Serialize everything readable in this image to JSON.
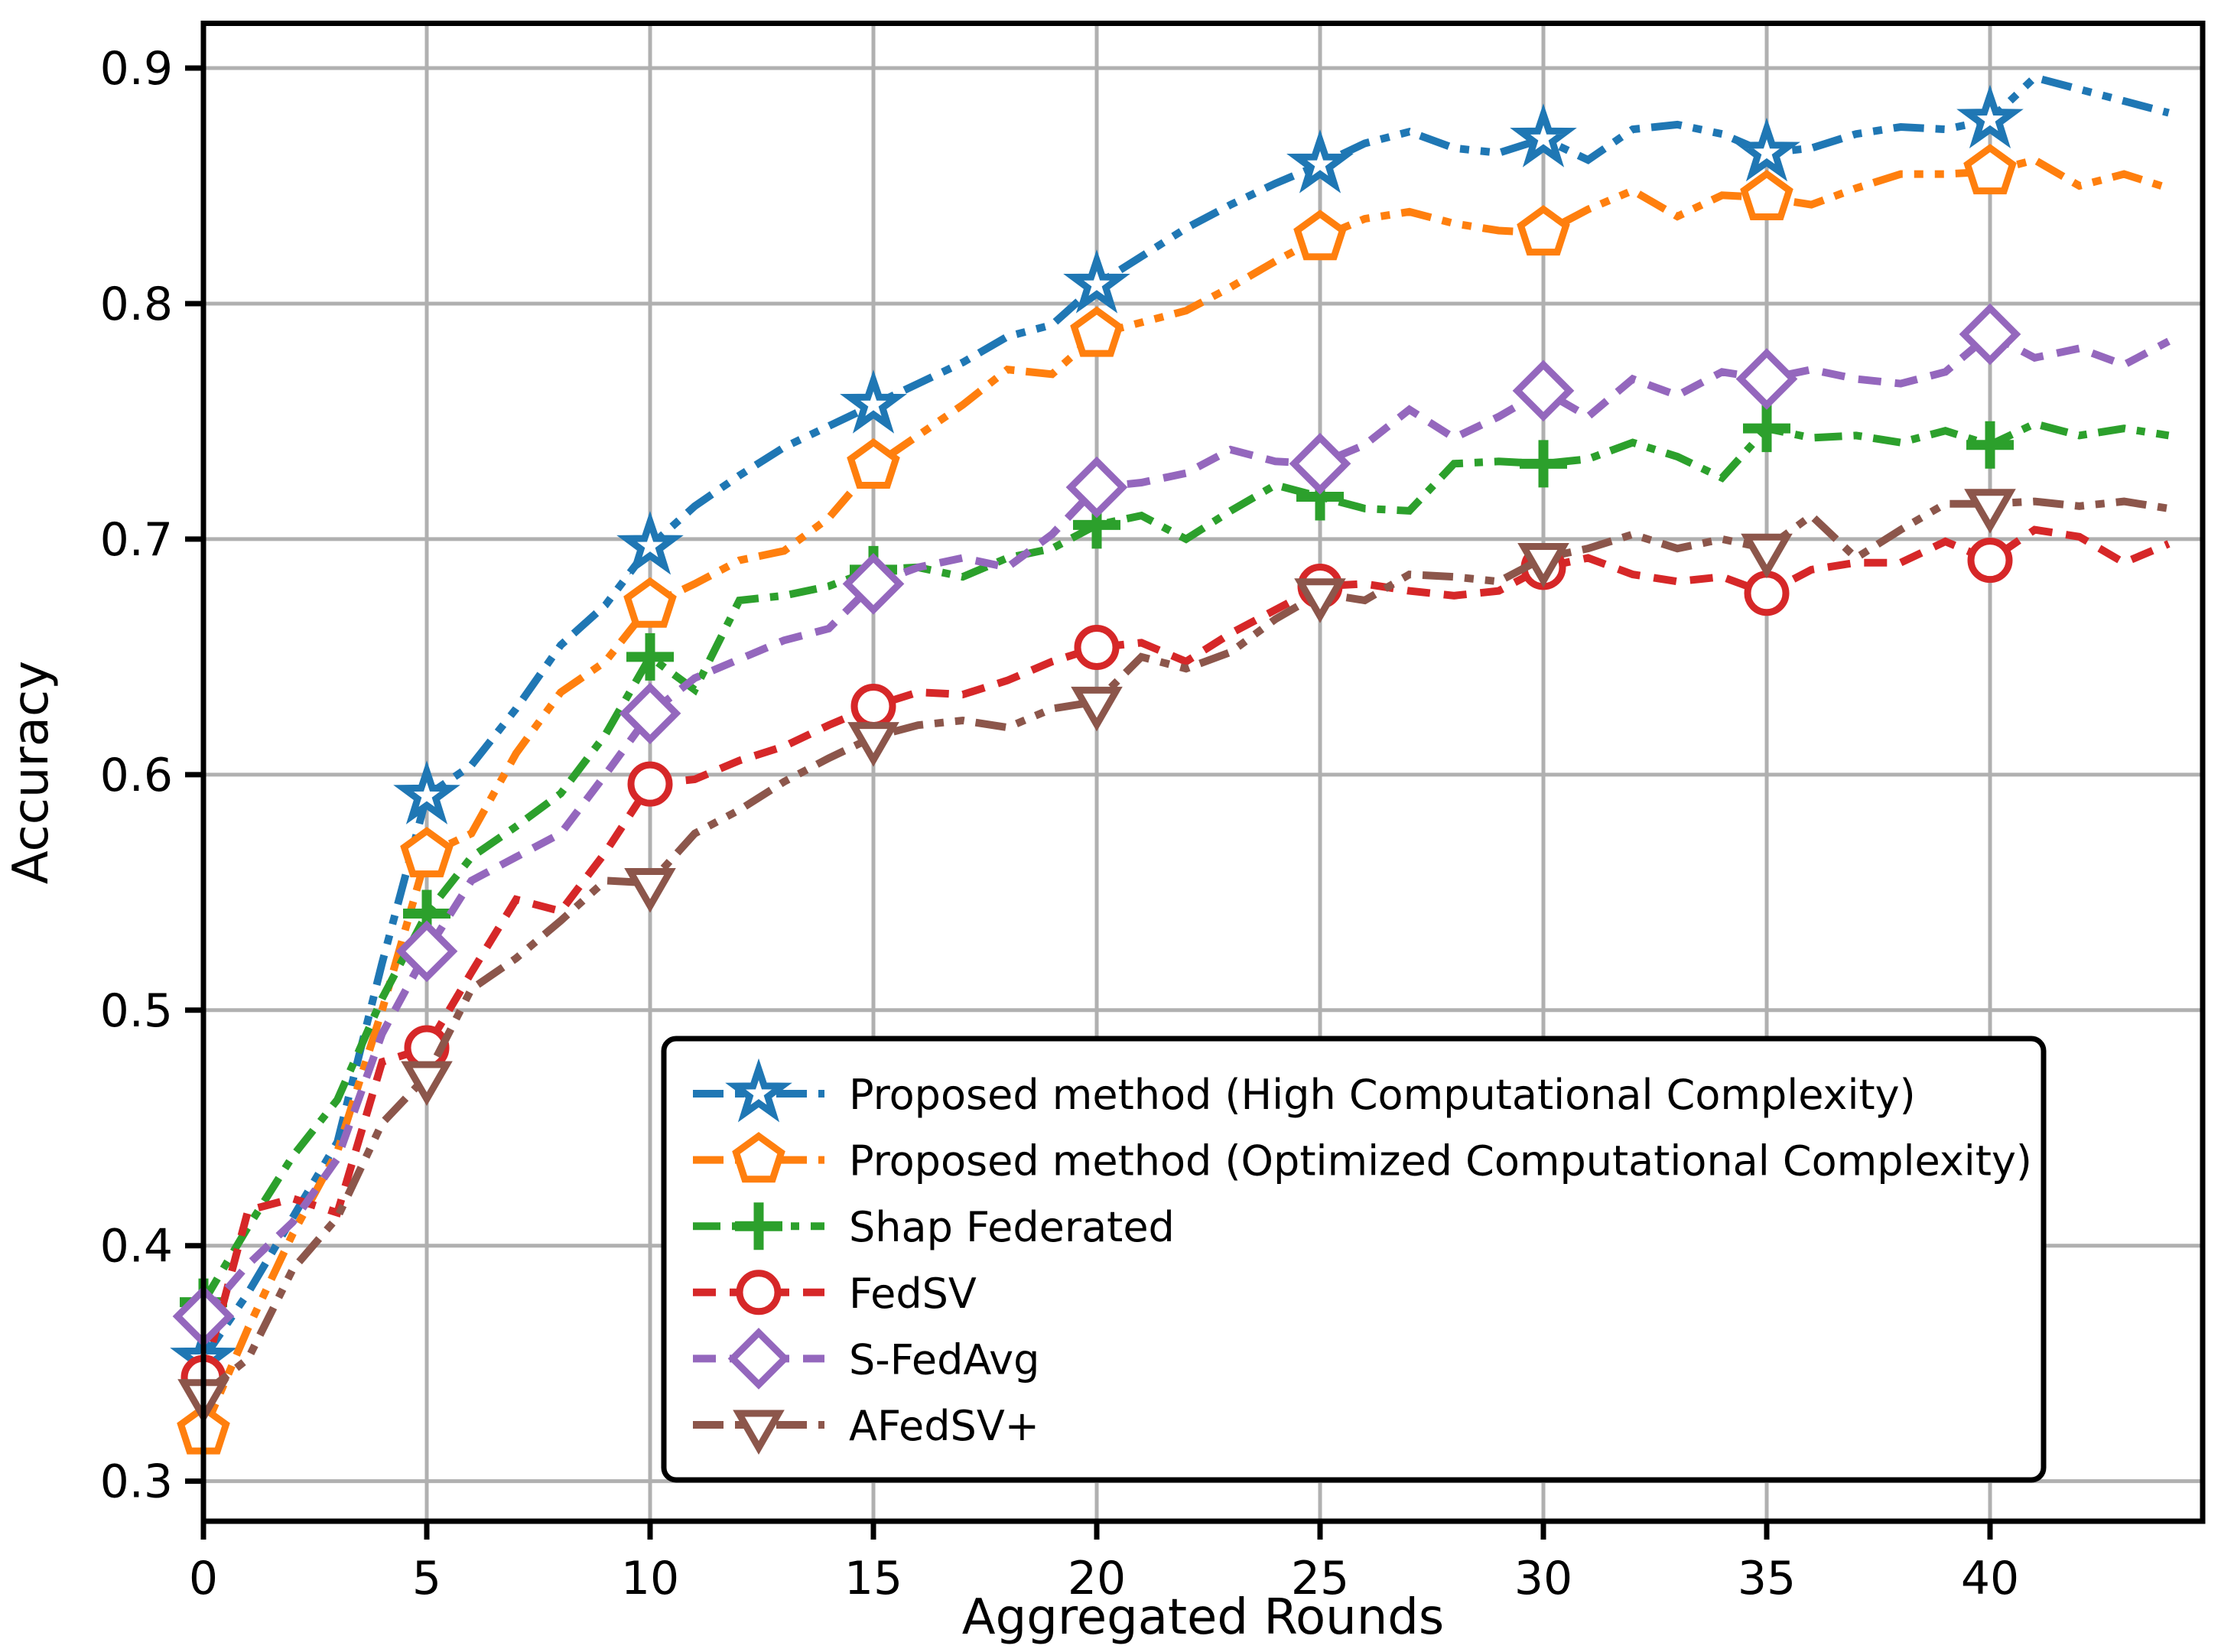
{
  "axes": {
    "xlabel": "Aggregated Rounds",
    "ylabel": "Accuracy",
    "x_ticks": [
      0,
      5,
      10,
      15,
      20,
      25,
      30,
      35,
      40
    ],
    "y_ticks": [
      0.3,
      0.4,
      0.5,
      0.6,
      0.7,
      0.8,
      0.9
    ],
    "xlim": [
      0,
      44.76
    ],
    "ylim": [
      0.283,
      0.919
    ],
    "grid": true,
    "grid_color": "#b0b0b0",
    "spine_color": "#000000"
  },
  "legend": {
    "position": "lower-center-right",
    "border_color": "#000000",
    "background": "#ffffff"
  },
  "chart_data": {
    "type": "line",
    "x": [
      0,
      1,
      2,
      3,
      4,
      5,
      6,
      7,
      8,
      9,
      10,
      11,
      12,
      13,
      14,
      15,
      16,
      17,
      18,
      19,
      20,
      21,
      22,
      23,
      24,
      25,
      26,
      27,
      28,
      29,
      30,
      31,
      32,
      33,
      34,
      35,
      36,
      37,
      38,
      39,
      40,
      41,
      42,
      43,
      44
    ],
    "marker_every": 5,
    "series": [
      {
        "name": "Proposed method (High Computational Complexity)",
        "color": "#1f77b4",
        "marker": "star",
        "dash": [
          40,
          15,
          12,
          15,
          12,
          15
        ],
        "values": [
          0.352,
          0.38,
          0.412,
          0.444,
          0.52,
          0.591,
          0.604,
          0.628,
          0.655,
          0.672,
          0.697,
          0.714,
          0.727,
          0.739,
          0.748,
          0.757,
          0.766,
          0.775,
          0.786,
          0.791,
          0.808,
          0.82,
          0.832,
          0.842,
          0.851,
          0.859,
          0.868,
          0.873,
          0.866,
          0.864,
          0.87,
          0.861,
          0.874,
          0.876,
          0.872,
          0.864,
          0.866,
          0.872,
          0.875,
          0.874,
          0.878,
          0.896,
          0.891,
          0.886,
          0.881
        ]
      },
      {
        "name": "Proposed method (Optimized Computational Complexity)",
        "color": "#ff7f0e",
        "marker": "pentagon",
        "dash": [
          40,
          15,
          12,
          15,
          12,
          15
        ],
        "values": [
          0.321,
          0.365,
          0.405,
          0.44,
          0.5,
          0.566,
          0.575,
          0.609,
          0.635,
          0.648,
          0.672,
          0.681,
          0.691,
          0.695,
          0.709,
          0.731,
          0.744,
          0.757,
          0.772,
          0.77,
          0.787,
          0.792,
          0.797,
          0.807,
          0.818,
          0.828,
          0.836,
          0.839,
          0.834,
          0.831,
          0.83,
          0.84,
          0.848,
          0.837,
          0.846,
          0.845,
          0.842,
          0.849,
          0.855,
          0.855,
          0.856,
          0.861,
          0.85,
          0.855,
          0.849
        ]
      },
      {
        "name": "Shap Federated",
        "color": "#2ca02c",
        "marker": "plus",
        "dash": [
          36,
          15,
          11,
          15
        ],
        "values": [
          0.376,
          0.408,
          0.438,
          0.462,
          0.505,
          0.541,
          0.565,
          0.578,
          0.592,
          0.617,
          0.65,
          0.636,
          0.674,
          0.676,
          0.68,
          0.687,
          0.688,
          0.684,
          0.692,
          0.696,
          0.706,
          0.71,
          0.7,
          0.712,
          0.723,
          0.718,
          0.713,
          0.712,
          0.732,
          0.733,
          0.732,
          0.734,
          0.741,
          0.735,
          0.726,
          0.747,
          0.743,
          0.744,
          0.741,
          0.746,
          0.74,
          0.749,
          0.744,
          0.747,
          0.744
        ]
      },
      {
        "name": "FedSV",
        "color": "#d62728",
        "marker": "circle",
        "dash": [
          30,
          18
        ],
        "values": [
          0.344,
          0.415,
          0.42,
          0.414,
          0.478,
          0.484,
          0.516,
          0.547,
          0.542,
          0.567,
          0.596,
          0.598,
          0.606,
          0.612,
          0.621,
          0.629,
          0.635,
          0.634,
          0.64,
          0.648,
          0.654,
          0.656,
          0.648,
          0.66,
          0.67,
          0.68,
          0.681,
          0.678,
          0.676,
          0.678,
          0.688,
          0.692,
          0.685,
          0.682,
          0.684,
          0.677,
          0.687,
          0.69,
          0.69,
          0.699,
          0.691,
          0.704,
          0.701,
          0.69,
          0.698
        ]
      },
      {
        "name": "S-FedAvg",
        "color": "#9467bd",
        "marker": "diamond",
        "dash": [
          30,
          18
        ],
        "values": [
          0.37,
          0.392,
          0.41,
          0.437,
          0.49,
          0.525,
          0.555,
          0.565,
          0.575,
          0.6,
          0.626,
          0.641,
          0.649,
          0.657,
          0.662,
          0.681,
          0.688,
          0.692,
          0.688,
          0.702,
          0.722,
          0.724,
          0.728,
          0.738,
          0.733,
          0.732,
          0.74,
          0.755,
          0.743,
          0.752,
          0.763,
          0.752,
          0.768,
          0.761,
          0.771,
          0.768,
          0.772,
          0.768,
          0.766,
          0.771,
          0.787,
          0.777,
          0.781,
          0.774,
          0.784
        ]
      },
      {
        "name": "AFedSV+",
        "color": "#8c564b",
        "marker": "triangle-down",
        "dash": [
          40,
          15,
          12,
          15,
          12,
          15
        ],
        "values": [
          0.337,
          0.352,
          0.39,
          0.412,
          0.452,
          0.472,
          0.509,
          0.522,
          0.538,
          0.555,
          0.554,
          0.575,
          0.585,
          0.597,
          0.607,
          0.616,
          0.621,
          0.623,
          0.62,
          0.628,
          0.631,
          0.65,
          0.645,
          0.652,
          0.666,
          0.677,
          0.674,
          0.685,
          0.684,
          0.682,
          0.692,
          0.696,
          0.702,
          0.696,
          0.7,
          0.696,
          0.71,
          0.692,
          0.704,
          0.715,
          0.715,
          0.716,
          0.714,
          0.716,
          0.713
        ]
      }
    ]
  }
}
